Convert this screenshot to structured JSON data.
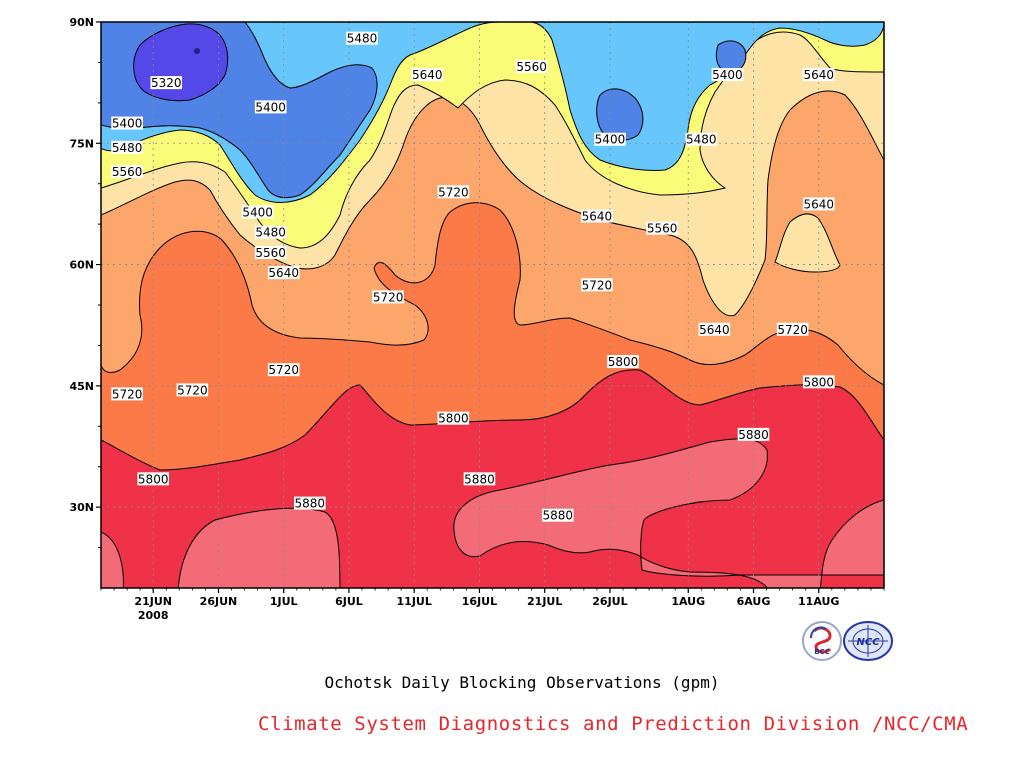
{
  "chart_data": {
    "type": "heatmap",
    "title": "Ochotsk Daily Blocking Observations (gpm)",
    "xlabel": "",
    "ylabel": "",
    "x_tick_labels": [
      "21JUN",
      "26JUN",
      "1JUL",
      "6JUL",
      "11JUL",
      "16JUL",
      "21JUL",
      "26JUL",
      "1AUG",
      "6AUG",
      "11AUG"
    ],
    "x_year_label": "2008",
    "y_tick_labels": [
      "30N",
      "45N",
      "60N",
      "75N",
      "90N"
    ],
    "y_range": [
      20,
      90
    ],
    "grid": true,
    "contour_levels": [
      5320,
      5400,
      5480,
      5560,
      5640,
      5720,
      5800,
      5880
    ],
    "fill_colors": [
      "#5548e8",
      "#4f84e6",
      "#67c6fb",
      "#fbfb7a",
      "#fde4a6",
      "#fda66b",
      "#fb7a48",
      "#f46b78",
      "#f03248"
    ],
    "contour_labels": [
      {
        "value": 5320,
        "date": "22JUN",
        "lat": 82.5
      },
      {
        "value": 5400,
        "date": "30JUN",
        "lat": 79.5
      },
      {
        "value": 5400,
        "date": "29JUN",
        "lat": 66.5
      },
      {
        "value": 5400,
        "date": "26JUL",
        "lat": 75.5
      },
      {
        "value": 5400,
        "date": "4AUG",
        "lat": 83.5
      },
      {
        "value": 5400,
        "date": "19JUN",
        "lat": 77.5
      },
      {
        "value": 5480,
        "date": "7JUL",
        "lat": 88
      },
      {
        "value": 5480,
        "date": "19JUN",
        "lat": 74.5
      },
      {
        "value": 5480,
        "date": "30JUN",
        "lat": 64
      },
      {
        "value": 5480,
        "date": "2AUG",
        "lat": 75.5
      },
      {
        "value": 5560,
        "date": "19JUN",
        "lat": 71.5
      },
      {
        "value": 5560,
        "date": "20JUL",
        "lat": 84.5
      },
      {
        "value": 5560,
        "date": "30JUN",
        "lat": 61.5
      },
      {
        "value": 5560,
        "date": "30JUL",
        "lat": 64.5
      },
      {
        "value": 5640,
        "date": "12JUL",
        "lat": 83.5
      },
      {
        "value": 5640,
        "date": "1JUL",
        "lat": 59
      },
      {
        "value": 5640,
        "date": "25JUL",
        "lat": 66
      },
      {
        "value": 5640,
        "date": "3AUG",
        "lat": 52
      },
      {
        "value": 5640,
        "date": "11AUG",
        "lat": 83.5
      },
      {
        "value": 5640,
        "date": "11AUG",
        "lat": 67.5
      },
      {
        "value": 5720,
        "date": "14JUL",
        "lat": 69
      },
      {
        "value": 5720,
        "date": "9JUL",
        "lat": 56
      },
      {
        "value": 5720,
        "date": "1JUL",
        "lat": 47
      },
      {
        "value": 5720,
        "date": "24JUN",
        "lat": 44.5
      },
      {
        "value": 5720,
        "date": "19JUN",
        "lat": 44
      },
      {
        "value": 5720,
        "date": "25JUL",
        "lat": 57.5
      },
      {
        "value": 5720,
        "date": "9AUG",
        "lat": 52
      },
      {
        "value": 5800,
        "date": "27JUL",
        "lat": 48
      },
      {
        "value": 5800,
        "date": "11AUG",
        "lat": 45.5
      },
      {
        "value": 5800,
        "date": "14JUL",
        "lat": 41
      },
      {
        "value": 5800,
        "date": "21JUN",
        "lat": 33.5
      },
      {
        "value": 5880,
        "date": "3JUL",
        "lat": 30.5
      },
      {
        "value": 5880,
        "date": "16JUL",
        "lat": 33.5
      },
      {
        "value": 5880,
        "date": "22JUL",
        "lat": 29
      },
      {
        "value": 5880,
        "date": "6AUG",
        "lat": 39
      }
    ]
  },
  "footer": {
    "credit": "Climate System Diagnostics and Prediction Division /NCC/CMA",
    "credit_color": "#e8262a",
    "logos": [
      {
        "name": "bcc-logo",
        "text": "BCC"
      },
      {
        "name": "ncc-logo",
        "text": "NCC"
      }
    ]
  }
}
